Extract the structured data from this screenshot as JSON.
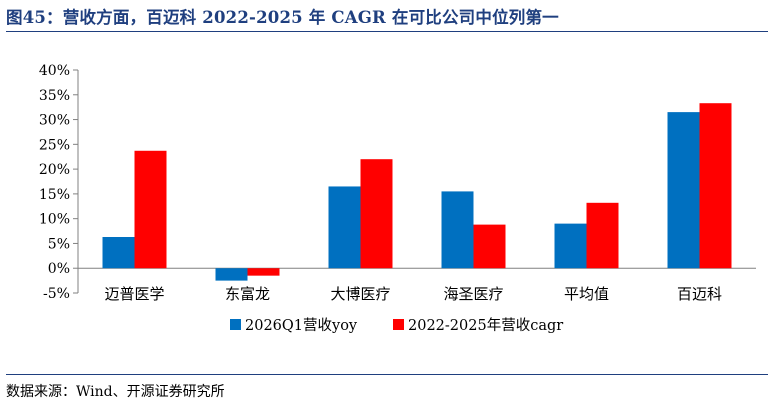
{
  "title": "图45：营收方面，百迈科 2022-2025 年 CAGR 在可比公司中位列第一",
  "source": "数据来源：Wind、开源证券研究所",
  "chart_data": {
    "type": "bar",
    "categories": [
      "迈普医学",
      "东富龙",
      "大博医疗",
      "海圣医疗",
      "平均值",
      "百迈科"
    ],
    "series": [
      {
        "name": "2026Q1营收yoy",
        "color": "#0070c0",
        "values": [
          6.3,
          -2.5,
          16.5,
          15.5,
          9.0,
          31.5
        ]
      },
      {
        "name": "2022-2025年营收cagr",
        "color": "#ff0000",
        "values": [
          23.7,
          -1.5,
          22.0,
          8.8,
          13.2,
          33.3
        ]
      }
    ],
    "yticks": [
      "-5%",
      "0%",
      "5%",
      "10%",
      "15%",
      "20%",
      "25%",
      "30%",
      "35%",
      "40%"
    ],
    "ylim": [
      -5,
      40
    ],
    "legend_position": "bottom",
    "grid": false
  }
}
